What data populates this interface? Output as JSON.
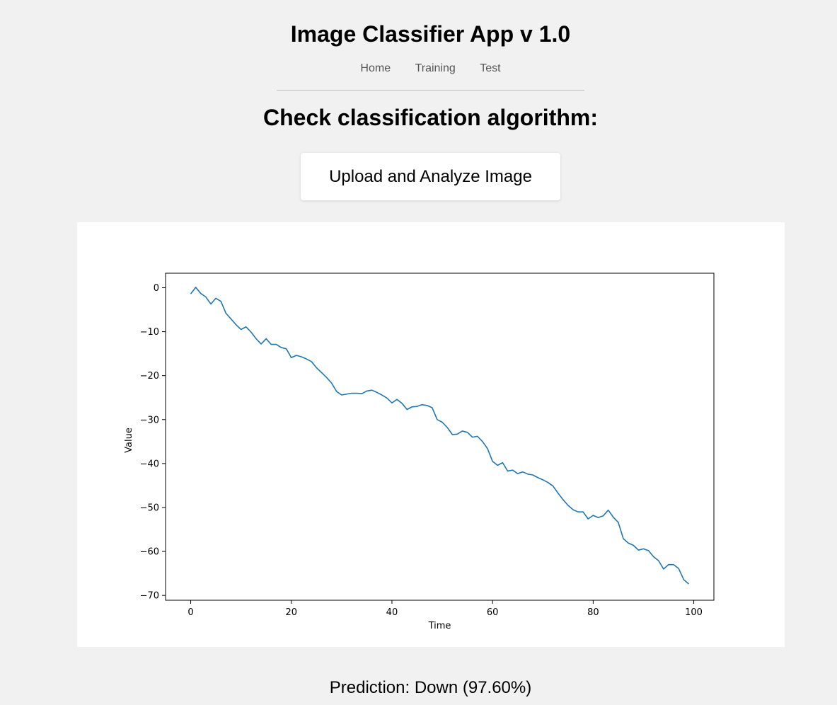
{
  "header": {
    "title": "Image Classifier App v 1.0"
  },
  "nav": {
    "items": [
      {
        "label": "Home"
      },
      {
        "label": "Training"
      },
      {
        "label": "Test"
      }
    ]
  },
  "main": {
    "heading": "Check classification algorithm:",
    "upload_button_label": "Upload and Analyze Image",
    "prediction_text": "Prediction: Down (97.60%)"
  },
  "chart_data": {
    "type": "line",
    "title": "",
    "xlabel": "Time",
    "ylabel": "Value",
    "xlim": [
      -5,
      104
    ],
    "ylim": [
      -71.1,
      3.3
    ],
    "xticks": [
      0,
      20,
      40,
      60,
      80,
      100
    ],
    "yticks": [
      0,
      -10,
      -20,
      -30,
      -40,
      -50,
      -60,
      -70
    ],
    "grid": false,
    "line_color": "#1f77b4",
    "series": [
      {
        "x": [
          0,
          1,
          2,
          3,
          4,
          5,
          6,
          7,
          8,
          9,
          10,
          11,
          12,
          13,
          14,
          15,
          16,
          17,
          18,
          19,
          20,
          21,
          22,
          23,
          24,
          25,
          26,
          27,
          28,
          29,
          30,
          31,
          32,
          33,
          34,
          35,
          36,
          37,
          38,
          39,
          40,
          41,
          42,
          43,
          44,
          45,
          46,
          47,
          48,
          49,
          50,
          51,
          52,
          53,
          54,
          55,
          56,
          57,
          58,
          59,
          60,
          61,
          62,
          63,
          64,
          65,
          66,
          67,
          68,
          69,
          70,
          71,
          72,
          73,
          74,
          75,
          76,
          77,
          78,
          79,
          80,
          81,
          82,
          83,
          84,
          85,
          86,
          87,
          88,
          89,
          90,
          91,
          92,
          93,
          94,
          95,
          96,
          97,
          98,
          99
        ],
        "values": [
          -1.4,
          0.1,
          -1.3,
          -2.1,
          -3.7,
          -2.4,
          -3.1,
          -5.8,
          -7.1,
          -8.4,
          -9.5,
          -8.9,
          -10.1,
          -11.6,
          -12.8,
          -11.6,
          -12.9,
          -12.9,
          -13.6,
          -13.9,
          -15.9,
          -15.4,
          -15.7,
          -16.2,
          -16.8,
          -18.2,
          -19.3,
          -20.4,
          -21.7,
          -23.6,
          -24.4,
          -24.2,
          -24.0,
          -24.0,
          -24.1,
          -23.5,
          -23.3,
          -23.8,
          -24.4,
          -25.1,
          -26.2,
          -25.4,
          -26.3,
          -27.7,
          -27.1,
          -27.0,
          -26.6,
          -26.8,
          -27.3,
          -30.0,
          -30.6,
          -31.8,
          -33.4,
          -33.3,
          -32.6,
          -32.9,
          -34.0,
          -33.8,
          -35.0,
          -36.6,
          -39.5,
          -40.4,
          -39.8,
          -41.7,
          -41.5,
          -42.3,
          -41.9,
          -42.4,
          -42.6,
          -43.2,
          -43.7,
          -44.3,
          -45.1,
          -46.7,
          -48.2,
          -49.5,
          -50.5,
          -51.0,
          -51.0,
          -52.6,
          -51.8,
          -52.3,
          -51.9,
          -50.6,
          -52.2,
          -53.4,
          -57.1,
          -58.1,
          -58.6,
          -59.7,
          -59.4,
          -59.8,
          -61.2,
          -62.1,
          -64.0,
          -63.0,
          -63.0,
          -63.9,
          -66.4,
          -67.4
        ]
      }
    ]
  }
}
